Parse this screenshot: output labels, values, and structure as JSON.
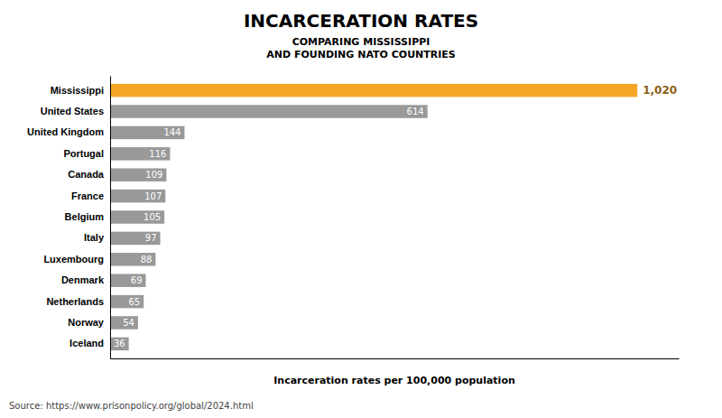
{
  "chart_data": {
    "type": "bar",
    "orientation": "horizontal",
    "title": "INCARCERATION RATES",
    "subtitle": "COMPARING MISSISSIPPI\nAND FOUNDING NATO COUNTRIES",
    "xlabel": "Incarceration rates per 100,000 population",
    "source": "Source: https://www.prisonpolicy.org/global/2024.html",
    "categories": [
      "Mississippi",
      "United States",
      "United Kingdom",
      "Portugal",
      "Canada",
      "France",
      "Belgium",
      "Italy",
      "Luxembourg",
      "Denmark",
      "Netherlands",
      "Norway",
      "Iceland"
    ],
    "values": [
      1020,
      614,
      144,
      116,
      109,
      107,
      105,
      97,
      88,
      69,
      65,
      54,
      36
    ],
    "value_labels": [
      "1,020",
      "614",
      "144",
      "116",
      "109",
      "107",
      "105",
      "97",
      "88",
      "69",
      "65",
      "54",
      "36"
    ],
    "colors": [
      "#F5A623",
      "#999999",
      "#999999",
      "#999999",
      "#999999",
      "#999999",
      "#999999",
      "#999999",
      "#999999",
      "#999999",
      "#999999",
      "#999999",
      "#999999"
    ],
    "xlim": [
      0,
      1100
    ],
    "data_labels": true,
    "tick_labels": "y",
    "grid": false
  }
}
